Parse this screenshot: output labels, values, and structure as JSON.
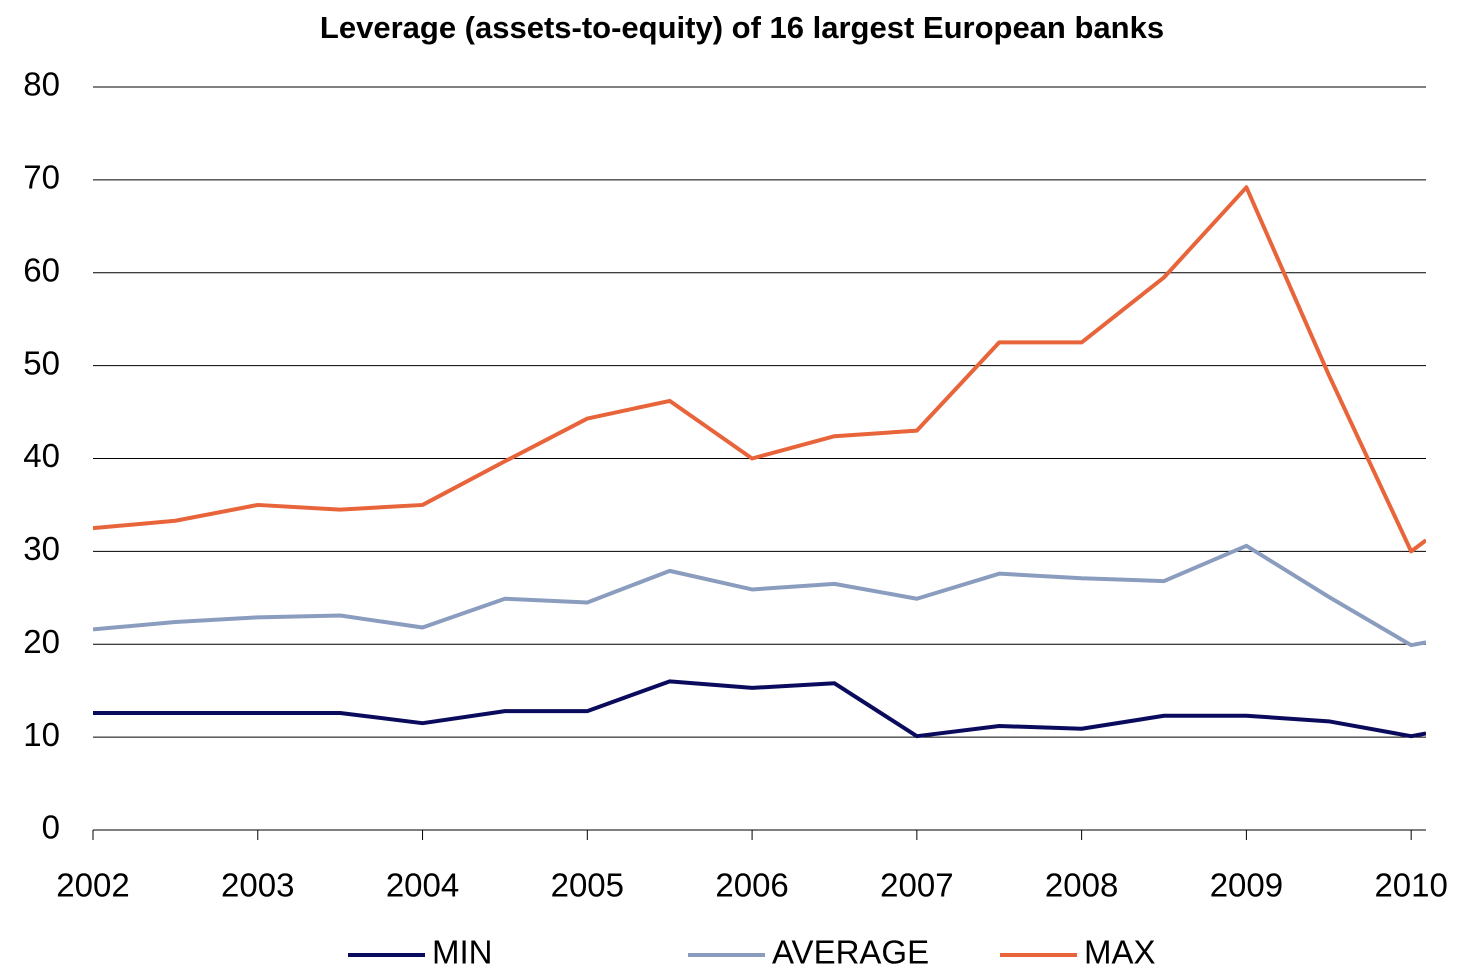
{
  "chart_data": {
    "type": "line",
    "title": "Leverage (assets-to-equity) of 16 largest European banks",
    "x": [
      2002,
      2002.5,
      2003,
      2003.5,
      2004,
      2004.5,
      2005,
      2005.5,
      2006,
      2006.5,
      2007,
      2007.5,
      2008,
      2008.5,
      2009,
      2009.5,
      2010,
      2010.09
    ],
    "series": [
      {
        "name": "MIN",
        "color": "#0b0b5e",
        "values": [
          12.6,
          12.6,
          12.6,
          12.6,
          11.5,
          12.8,
          12.8,
          16.0,
          15.3,
          15.8,
          10.1,
          11.2,
          10.9,
          12.3,
          12.3,
          11.7,
          10.1,
          10.4
        ]
      },
      {
        "name": "AVERAGE",
        "color": "#8b9dbf",
        "values": [
          21.6,
          22.4,
          22.9,
          23.1,
          21.8,
          24.9,
          24.5,
          27.9,
          25.9,
          26.5,
          24.9,
          27.6,
          27.1,
          26.8,
          30.6,
          25.1,
          19.9,
          20.2
        ]
      },
      {
        "name": "MAX",
        "color": "#e8643a",
        "values": [
          32.5,
          33.3,
          35.0,
          34.5,
          35.0,
          39.7,
          44.3,
          46.2,
          40.0,
          42.4,
          43.0,
          52.5,
          52.5,
          59.5,
          69.2,
          49.0,
          30.0,
          31.2
        ]
      }
    ],
    "xlim": [
      2002,
      2010.09
    ],
    "xticks": [
      2002,
      2003,
      2004,
      2005,
      2006,
      2007,
      2008,
      2009,
      2010
    ],
    "ylim": [
      0,
      80
    ],
    "yticks": [
      0,
      10,
      20,
      30,
      40,
      50,
      60,
      70,
      80
    ],
    "grid": true,
    "legend": "bottom"
  }
}
